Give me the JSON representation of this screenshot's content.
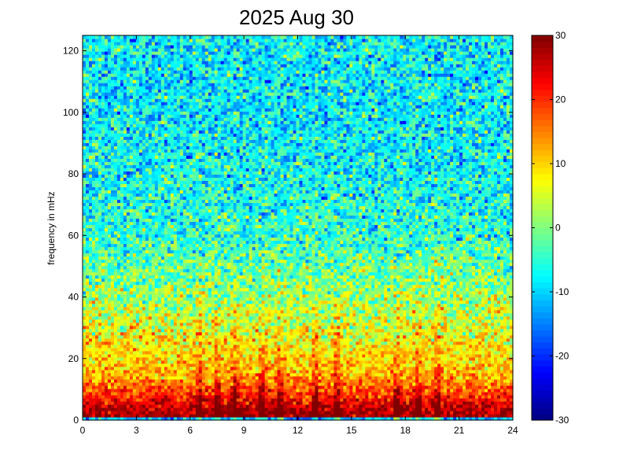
{
  "chart_data": {
    "type": "heatmap",
    "title": "2025 Aug 30",
    "xlabel": "",
    "ylabel": "frequency in mHz",
    "xlim": [
      0,
      24
    ],
    "ylim": [
      0,
      125
    ],
    "x_ticks": [
      0,
      3,
      6,
      9,
      12,
      15,
      18,
      21,
      24
    ],
    "y_ticks": [
      0,
      20,
      40,
      60,
      80,
      100,
      120
    ],
    "colorbar": {
      "colormap": "jet",
      "clim": [
        -30,
        30
      ],
      "ticks": [
        -30,
        -20,
        -10,
        0,
        10,
        20,
        30
      ]
    },
    "grid": false,
    "approx_power_by_frequency": [
      {
        "freq_mHz": 3,
        "value": 28
      },
      {
        "freq_mHz": 8,
        "value": 20
      },
      {
        "freq_mHz": 15,
        "value": 12
      },
      {
        "freq_mHz": 25,
        "value": 8
      },
      {
        "freq_mHz": 40,
        "value": 2
      },
      {
        "freq_mHz": 60,
        "value": -5
      },
      {
        "freq_mHz": 80,
        "value": -7
      },
      {
        "freq_mHz": 100,
        "value": -8
      },
      {
        "freq_mHz": 120,
        "value": -8
      }
    ],
    "bursts_hours": [
      6.5,
      7.5,
      8.5,
      10.0,
      11.0,
      13.0,
      14.2,
      17.5,
      18.7,
      19.8
    ]
  }
}
